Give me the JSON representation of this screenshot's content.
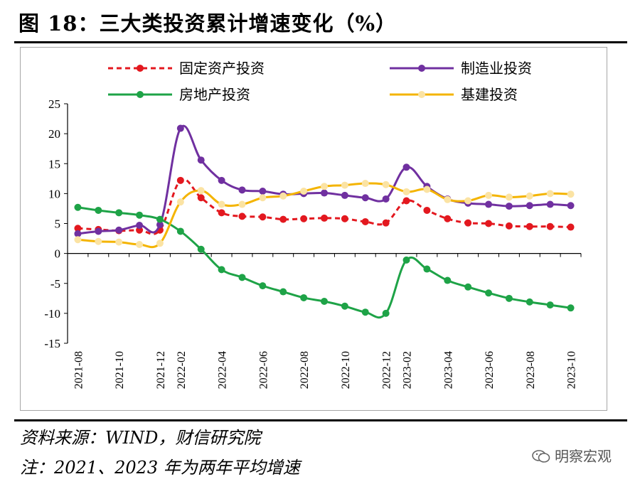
{
  "title": "图 18：三大类投资累计增速变化（%）",
  "source": "资料来源：WIND，财信研究院",
  "note": "注：2021、2023 年为两年平均增速",
  "watermark": "明察宏观",
  "chart_data": {
    "type": "line",
    "title": "",
    "xlabel": "",
    "ylabel": "",
    "ylim": [
      -15,
      25
    ],
    "yticks": [
      -15,
      -10,
      -5,
      0,
      5,
      10,
      15,
      20,
      25
    ],
    "grid": false,
    "legend_position": "top",
    "x": [
      "2021-08",
      "2021-09",
      "2021-10",
      "2021-11",
      "2021-12",
      "2022-02",
      "2022-03",
      "2022-04",
      "2022-05",
      "2022-06",
      "2022-07",
      "2022-08",
      "2022-09",
      "2022-10",
      "2022-11",
      "2022-12",
      "2023-02",
      "2023-03",
      "2023-04",
      "2023-05",
      "2023-06",
      "2023-07",
      "2023-08",
      "2023-09",
      "2023-10"
    ],
    "xtick_labels": [
      "2021-08",
      "2021-10",
      "2021-12",
      "2022-02",
      "2022-04",
      "2022-06",
      "2022-08",
      "2022-10",
      "2022-12",
      "2023-02",
      "2023-04",
      "2023-06",
      "2023-08",
      "2023-10"
    ],
    "series": [
      {
        "name": "固定资产投资",
        "color": "#e3181f",
        "dash": true,
        "values": [
          4.2,
          4.0,
          3.8,
          3.9,
          3.9,
          12.2,
          9.3,
          6.8,
          6.2,
          6.1,
          5.7,
          5.8,
          5.9,
          5.8,
          5.3,
          5.1,
          8.8,
          7.2,
          5.8,
          5.1,
          5.0,
          4.6,
          4.5,
          4.5,
          4.4
        ]
      },
      {
        "name": "制造业投资",
        "color": "#7030a0",
        "dash": false,
        "values": [
          3.3,
          3.7,
          3.9,
          4.7,
          4.8,
          20.9,
          15.6,
          12.2,
          10.6,
          10.4,
          9.9,
          10.0,
          10.1,
          9.7,
          9.3,
          9.1,
          14.4,
          11.2,
          9.1,
          8.4,
          8.2,
          7.9,
          8.0,
          8.2,
          8.0
        ]
      },
      {
        "name": "房地产投资",
        "color": "#1ea347",
        "dash": false,
        "values": [
          7.7,
          7.2,
          6.8,
          6.4,
          5.7,
          3.7,
          0.7,
          -2.7,
          -4.0,
          -5.4,
          -6.4,
          -7.4,
          -8.0,
          -8.8,
          -9.8,
          -10.0,
          -1.1,
          -2.6,
          -4.5,
          -5.6,
          -6.6,
          -7.5,
          -8.1,
          -8.6,
          -9.1
        ]
      },
      {
        "name": "基建投资",
        "color": "#f4b400",
        "marker_color": "#fbe3a3",
        "dash": false,
        "values": [
          2.3,
          2.0,
          1.9,
          1.5,
          1.7,
          8.6,
          10.5,
          8.2,
          8.2,
          9.3,
          9.6,
          10.4,
          11.2,
          11.4,
          11.7,
          11.5,
          10.3,
          10.7,
          9.0,
          8.8,
          9.7,
          9.4,
          9.6,
          10.0,
          9.9
        ]
      }
    ]
  }
}
